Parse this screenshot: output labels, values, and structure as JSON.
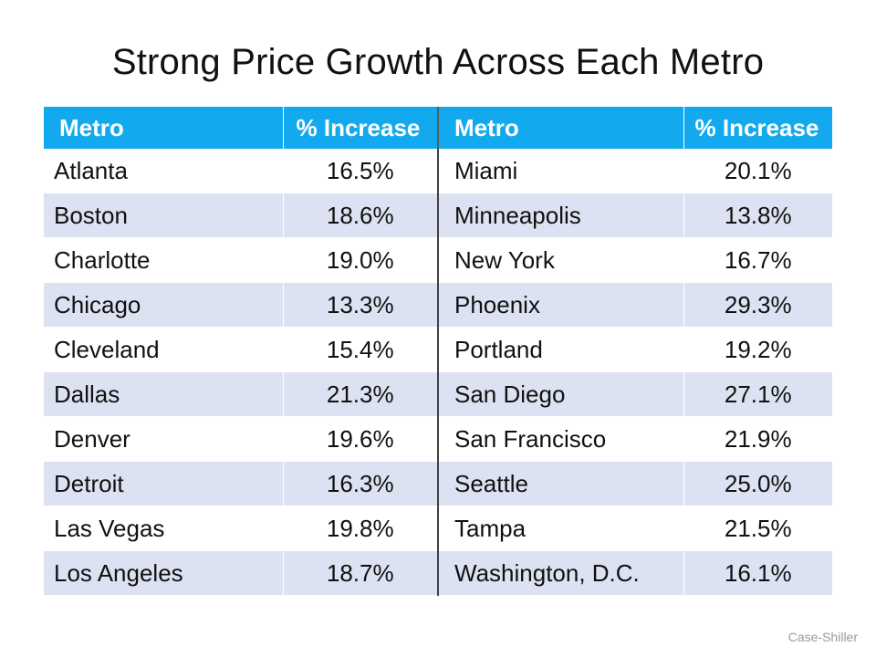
{
  "title": "Strong Price Growth Across Each Metro",
  "table": {
    "headers": [
      "Metro",
      "% Increase",
      "Metro",
      "% Increase"
    ],
    "rows": [
      {
        "metro_left": "Atlanta",
        "pct_left": "16.5%",
        "metro_right": "Miami",
        "pct_right": "20.1%"
      },
      {
        "metro_left": "Boston",
        "pct_left": "18.6%",
        "metro_right": "Minneapolis",
        "pct_right": "13.8%"
      },
      {
        "metro_left": "Charlotte",
        "pct_left": "19.0%",
        "metro_right": "New York",
        "pct_right": "16.7%"
      },
      {
        "metro_left": "Chicago",
        "pct_left": "13.3%",
        "metro_right": "Phoenix",
        "pct_right": "29.3%"
      },
      {
        "metro_left": "Cleveland",
        "pct_left": "15.4%",
        "metro_right": "Portland",
        "pct_right": "19.2%"
      },
      {
        "metro_left": "Dallas",
        "pct_left": "21.3%",
        "metro_right": "San Diego",
        "pct_right": "27.1%"
      },
      {
        "metro_left": "Denver",
        "pct_left": "19.6%",
        "metro_right": "San Francisco",
        "pct_right": "21.9%"
      },
      {
        "metro_left": "Detroit",
        "pct_left": "16.3%",
        "metro_right": "Seattle",
        "pct_right": "25.0%"
      },
      {
        "metro_left": "Las Vegas",
        "pct_left": "19.8%",
        "metro_right": "Tampa",
        "pct_right": "21.5%"
      },
      {
        "metro_left": "Los Angeles",
        "pct_left": "18.7%",
        "metro_right": "Washington, D.C.",
        "pct_right": "16.1%"
      }
    ]
  },
  "source": "Case-Shiller",
  "colors": {
    "header_bg": "#13a9ee",
    "header_text": "#ffffff",
    "stripe_bg": "#dce2f1",
    "row_bg": "#ffffff",
    "source_text": "#9a9a9a"
  }
}
